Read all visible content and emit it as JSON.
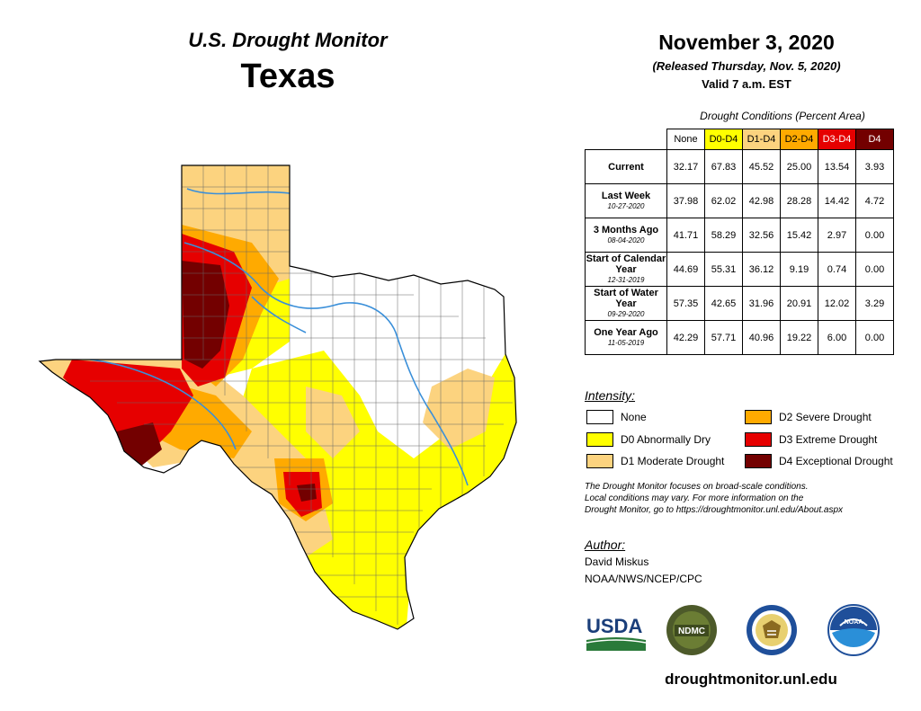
{
  "header": {
    "title": "U.S. Drought Monitor",
    "state": "Texas",
    "date": "November 3, 2020",
    "released": "(Released Thursday, Nov. 5, 2020)",
    "valid": "Valid 7 a.m. EST"
  },
  "conditions": {
    "title": "Drought Conditions (Percent Area)",
    "columns": [
      "None",
      "D0-D4",
      "D1-D4",
      "D2-D4",
      "D3-D4",
      "D4"
    ],
    "column_colors": [
      "#ffffff",
      "#ffff00",
      "#fcd37f",
      "#ffaa00",
      "#e60000",
      "#730000"
    ],
    "column_text_colors": [
      "#000000",
      "#000000",
      "#000000",
      "#000000",
      "#ffffff",
      "#ffffff"
    ],
    "rows": [
      {
        "label": "Current",
        "date": "",
        "values": [
          "32.17",
          "67.83",
          "45.52",
          "25.00",
          "13.54",
          "3.93"
        ]
      },
      {
        "label": "Last Week",
        "date": "10-27-2020",
        "values": [
          "37.98",
          "62.02",
          "42.98",
          "28.28",
          "14.42",
          "4.72"
        ]
      },
      {
        "label": "3 Months Ago",
        "date": "08-04-2020",
        "values": [
          "41.71",
          "58.29",
          "32.56",
          "15.42",
          "2.97",
          "0.00"
        ]
      },
      {
        "label": "Start of Calendar Year",
        "date": "12-31-2019",
        "values": [
          "44.69",
          "55.31",
          "36.12",
          "9.19",
          "0.74",
          "0.00"
        ]
      },
      {
        "label": "Start of Water Year",
        "date": "09-29-2020",
        "values": [
          "57.35",
          "42.65",
          "31.96",
          "20.91",
          "12.02",
          "3.29"
        ]
      },
      {
        "label": "One Year Ago",
        "date": "11-05-2019",
        "values": [
          "42.29",
          "57.71",
          "40.96",
          "19.22",
          "6.00",
          "0.00"
        ]
      }
    ]
  },
  "intensity": {
    "title": "Intensity:",
    "items": [
      {
        "label": "None",
        "color": "#ffffff"
      },
      {
        "label": "D0 Abnormally Dry",
        "color": "#ffff00"
      },
      {
        "label": "D1 Moderate Drought",
        "color": "#fcd37f"
      },
      {
        "label": "D2 Severe Drought",
        "color": "#ffaa00"
      },
      {
        "label": "D3 Extreme Drought",
        "color": "#e60000"
      },
      {
        "label": "D4 Exceptional Drought",
        "color": "#730000"
      }
    ]
  },
  "note": {
    "line1": "The Drought Monitor focuses on broad-scale conditions.",
    "line2": "Local conditions may vary. For more information on the",
    "line3": "Drought Monitor, go to https://droughtmonitor.unl.edu/About.aspx"
  },
  "author": {
    "title": "Author:",
    "name": "David Miskus",
    "org": "NOAA/NWS/NCEP/CPC"
  },
  "logos": {
    "usda": "USDA",
    "ndmc": "NDMC",
    "noaa": "NOAA"
  },
  "website": "droughtmonitor.unl.edu"
}
